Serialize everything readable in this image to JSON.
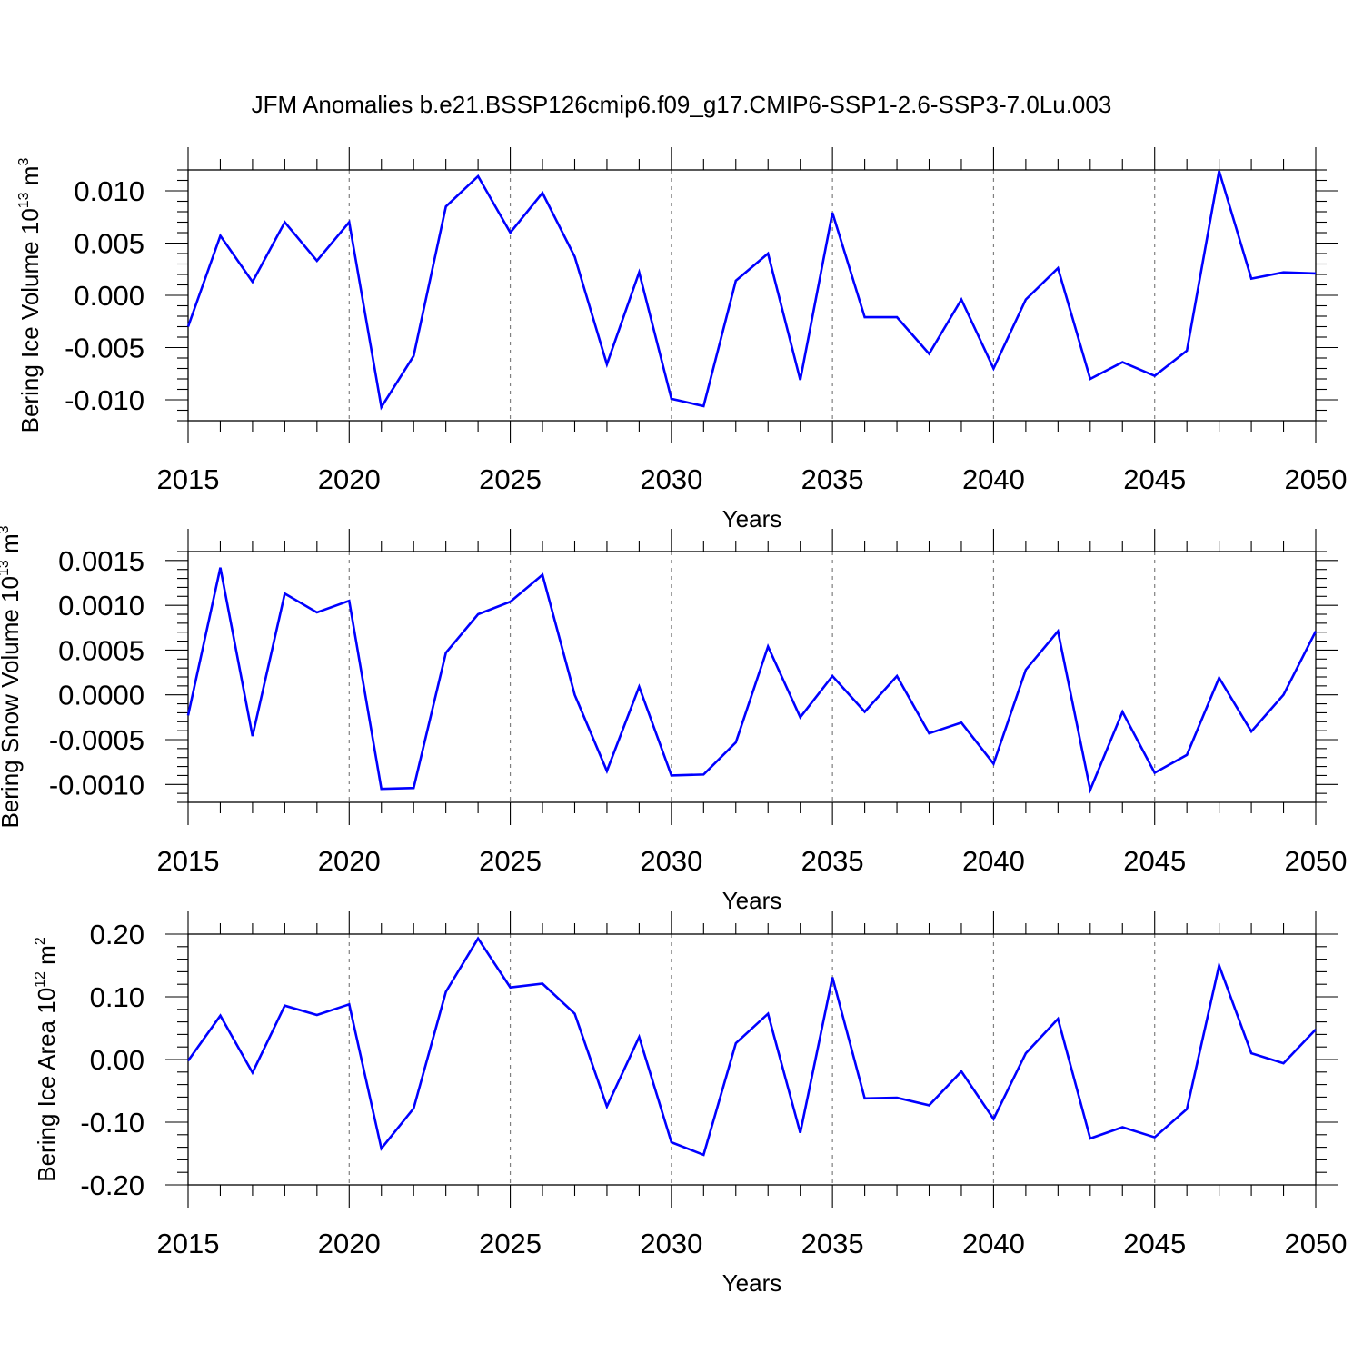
{
  "title": "JFM Anomalies b.e21.BSSP126cmip6.f09_g17.CMIP6-SSP1-2.6-SSP3-7.0Lu.003",
  "line_color": "#0000ff",
  "chart_data": [
    {
      "type": "line",
      "ylabel_main": "Bering Ice Volume 10",
      "ylabel_exp": "13",
      "ylabel_unit": " m",
      "ylabel_unit_exp": "3",
      "xlabel": "Years",
      "xlim": [
        2015,
        2050
      ],
      "ylim": [
        -0.012,
        0.012
      ],
      "x_ticks": [
        2015,
        2020,
        2025,
        2030,
        2035,
        2040,
        2045,
        2050
      ],
      "y_ticks": [
        -0.01,
        -0.005,
        0.0,
        0.005,
        0.01
      ],
      "y_tick_labels": [
        "-0.010",
        "-0.005",
        "0.000",
        "0.005",
        "0.010"
      ],
      "y_minor_step": 0.001,
      "x": [
        2015,
        2016,
        2017,
        2018,
        2019,
        2020,
        2021,
        2022,
        2023,
        2024,
        2025,
        2026,
        2027,
        2028,
        2029,
        2030,
        2031,
        2032,
        2033,
        2034,
        2035,
        2036,
        2037,
        2038,
        2039,
        2040,
        2041,
        2042,
        2043,
        2044,
        2045,
        2046,
        2047,
        2048,
        2049,
        2050
      ],
      "values": [
        -0.003,
        0.0057,
        0.0013,
        0.007,
        0.0033,
        0.007,
        -0.0107,
        -0.0058,
        0.0085,
        0.0114,
        0.006,
        0.0098,
        0.0037,
        -0.0066,
        0.0022,
        -0.0099,
        -0.0106,
        0.0014,
        0.004,
        -0.0081,
        0.0079,
        -0.0021,
        -0.0021,
        -0.0056,
        -0.0004,
        -0.007,
        -0.0004,
        0.0026,
        -0.008,
        -0.0064,
        -0.0077,
        -0.0053,
        0.0119,
        0.0016,
        0.0022,
        0.0021
      ]
    },
    {
      "type": "line",
      "ylabel_main": "Bering Snow Volume 10",
      "ylabel_exp": "13",
      "ylabel_unit": " m",
      "ylabel_unit_exp": "3",
      "xlabel": "Years",
      "xlim": [
        2015,
        2050
      ],
      "ylim": [
        -0.0012,
        0.0016
      ],
      "x_ticks": [
        2015,
        2020,
        2025,
        2030,
        2035,
        2040,
        2045,
        2050
      ],
      "y_ticks": [
        -0.001,
        -0.0005,
        0.0,
        0.0005,
        0.001,
        0.0015
      ],
      "y_tick_labels": [
        "-0.0010",
        "-0.0005",
        "0.0000",
        "0.0005",
        "0.0010",
        "0.0015"
      ],
      "y_minor_step": 0.0001,
      "x": [
        2015,
        2016,
        2017,
        2018,
        2019,
        2020,
        2021,
        2022,
        2023,
        2024,
        2025,
        2026,
        2027,
        2028,
        2029,
        2030,
        2031,
        2032,
        2033,
        2034,
        2035,
        2036,
        2037,
        2038,
        2039,
        2040,
        2041,
        2042,
        2043,
        2044,
        2045,
        2046,
        2047,
        2048,
        2049,
        2050
      ],
      "values": [
        -0.00023,
        0.00142,
        -0.00046,
        0.00113,
        0.00092,
        0.00105,
        -0.00105,
        -0.00104,
        0.00047,
        0.0009,
        0.00104,
        0.00134,
        0.0,
        -0.00085,
        9e-05,
        -0.0009,
        -0.00089,
        -0.00053,
        0.00054,
        -0.00025,
        0.00021,
        -0.00019,
        0.00021,
        -0.00043,
        -0.00031,
        -0.00077,
        0.00028,
        0.00071,
        -0.00106,
        -0.00019,
        -0.00087,
        -0.00067,
        0.00019,
        -0.00041,
        0.0,
        0.00071
      ]
    },
    {
      "type": "line",
      "ylabel_main": "Bering Ice Area 10",
      "ylabel_exp": "12",
      "ylabel_unit": " m",
      "ylabel_unit_exp": "2",
      "xlabel": "Years",
      "xlim": [
        2015,
        2050
      ],
      "ylim": [
        -0.2,
        0.2
      ],
      "x_ticks": [
        2015,
        2020,
        2025,
        2030,
        2035,
        2040,
        2045,
        2050
      ],
      "y_ticks": [
        -0.2,
        -0.1,
        0.0,
        0.1,
        0.2
      ],
      "y_tick_labels": [
        "-0.20",
        "-0.10",
        "0.00",
        "0.10",
        "0.20"
      ],
      "y_minor_step": 0.02,
      "x": [
        2015,
        2016,
        2017,
        2018,
        2019,
        2020,
        2021,
        2022,
        2023,
        2024,
        2025,
        2026,
        2027,
        2028,
        2029,
        2030,
        2031,
        2032,
        2033,
        2034,
        2035,
        2036,
        2037,
        2038,
        2039,
        2040,
        2041,
        2042,
        2043,
        2044,
        2045,
        2046,
        2047,
        2048,
        2049,
        2050
      ],
      "values": [
        -0.002,
        0.07,
        -0.021,
        0.086,
        0.071,
        0.088,
        -0.142,
        -0.078,
        0.108,
        0.193,
        0.115,
        0.121,
        0.073,
        -0.075,
        0.036,
        -0.132,
        -0.152,
        0.026,
        0.073,
        -0.117,
        0.131,
        -0.062,
        -0.061,
        -0.073,
        -0.019,
        -0.095,
        0.01,
        0.065,
        -0.126,
        -0.108,
        -0.124,
        -0.079,
        0.15,
        0.01,
        -0.006,
        0.048
      ]
    }
  ]
}
